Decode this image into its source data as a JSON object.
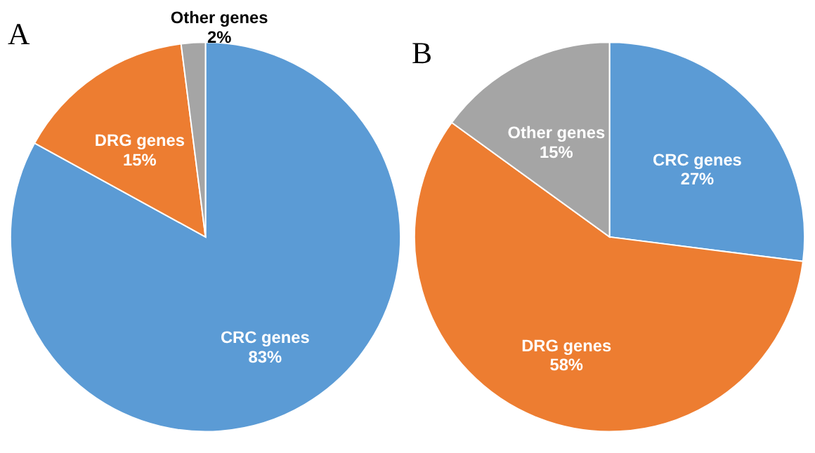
{
  "chart_data": [
    {
      "type": "pie",
      "title": "A",
      "categories": [
        "CRC genes",
        "DRG genes",
        "Other genes"
      ],
      "values": [
        83,
        15,
        2
      ],
      "colors": [
        "#5b9bd5",
        "#ed7d31",
        "#a5a5a5"
      ],
      "value_labels": [
        "83%",
        "15%",
        "2%"
      ]
    },
    {
      "type": "pie",
      "title": "B",
      "categories": [
        "CRC genes",
        "DRG genes",
        "Other genes"
      ],
      "values": [
        27,
        58,
        15
      ],
      "colors": [
        "#5b9bd5",
        "#ed7d31",
        "#a5a5a5"
      ],
      "value_labels": [
        "27%",
        "58%",
        "15%"
      ]
    }
  ]
}
